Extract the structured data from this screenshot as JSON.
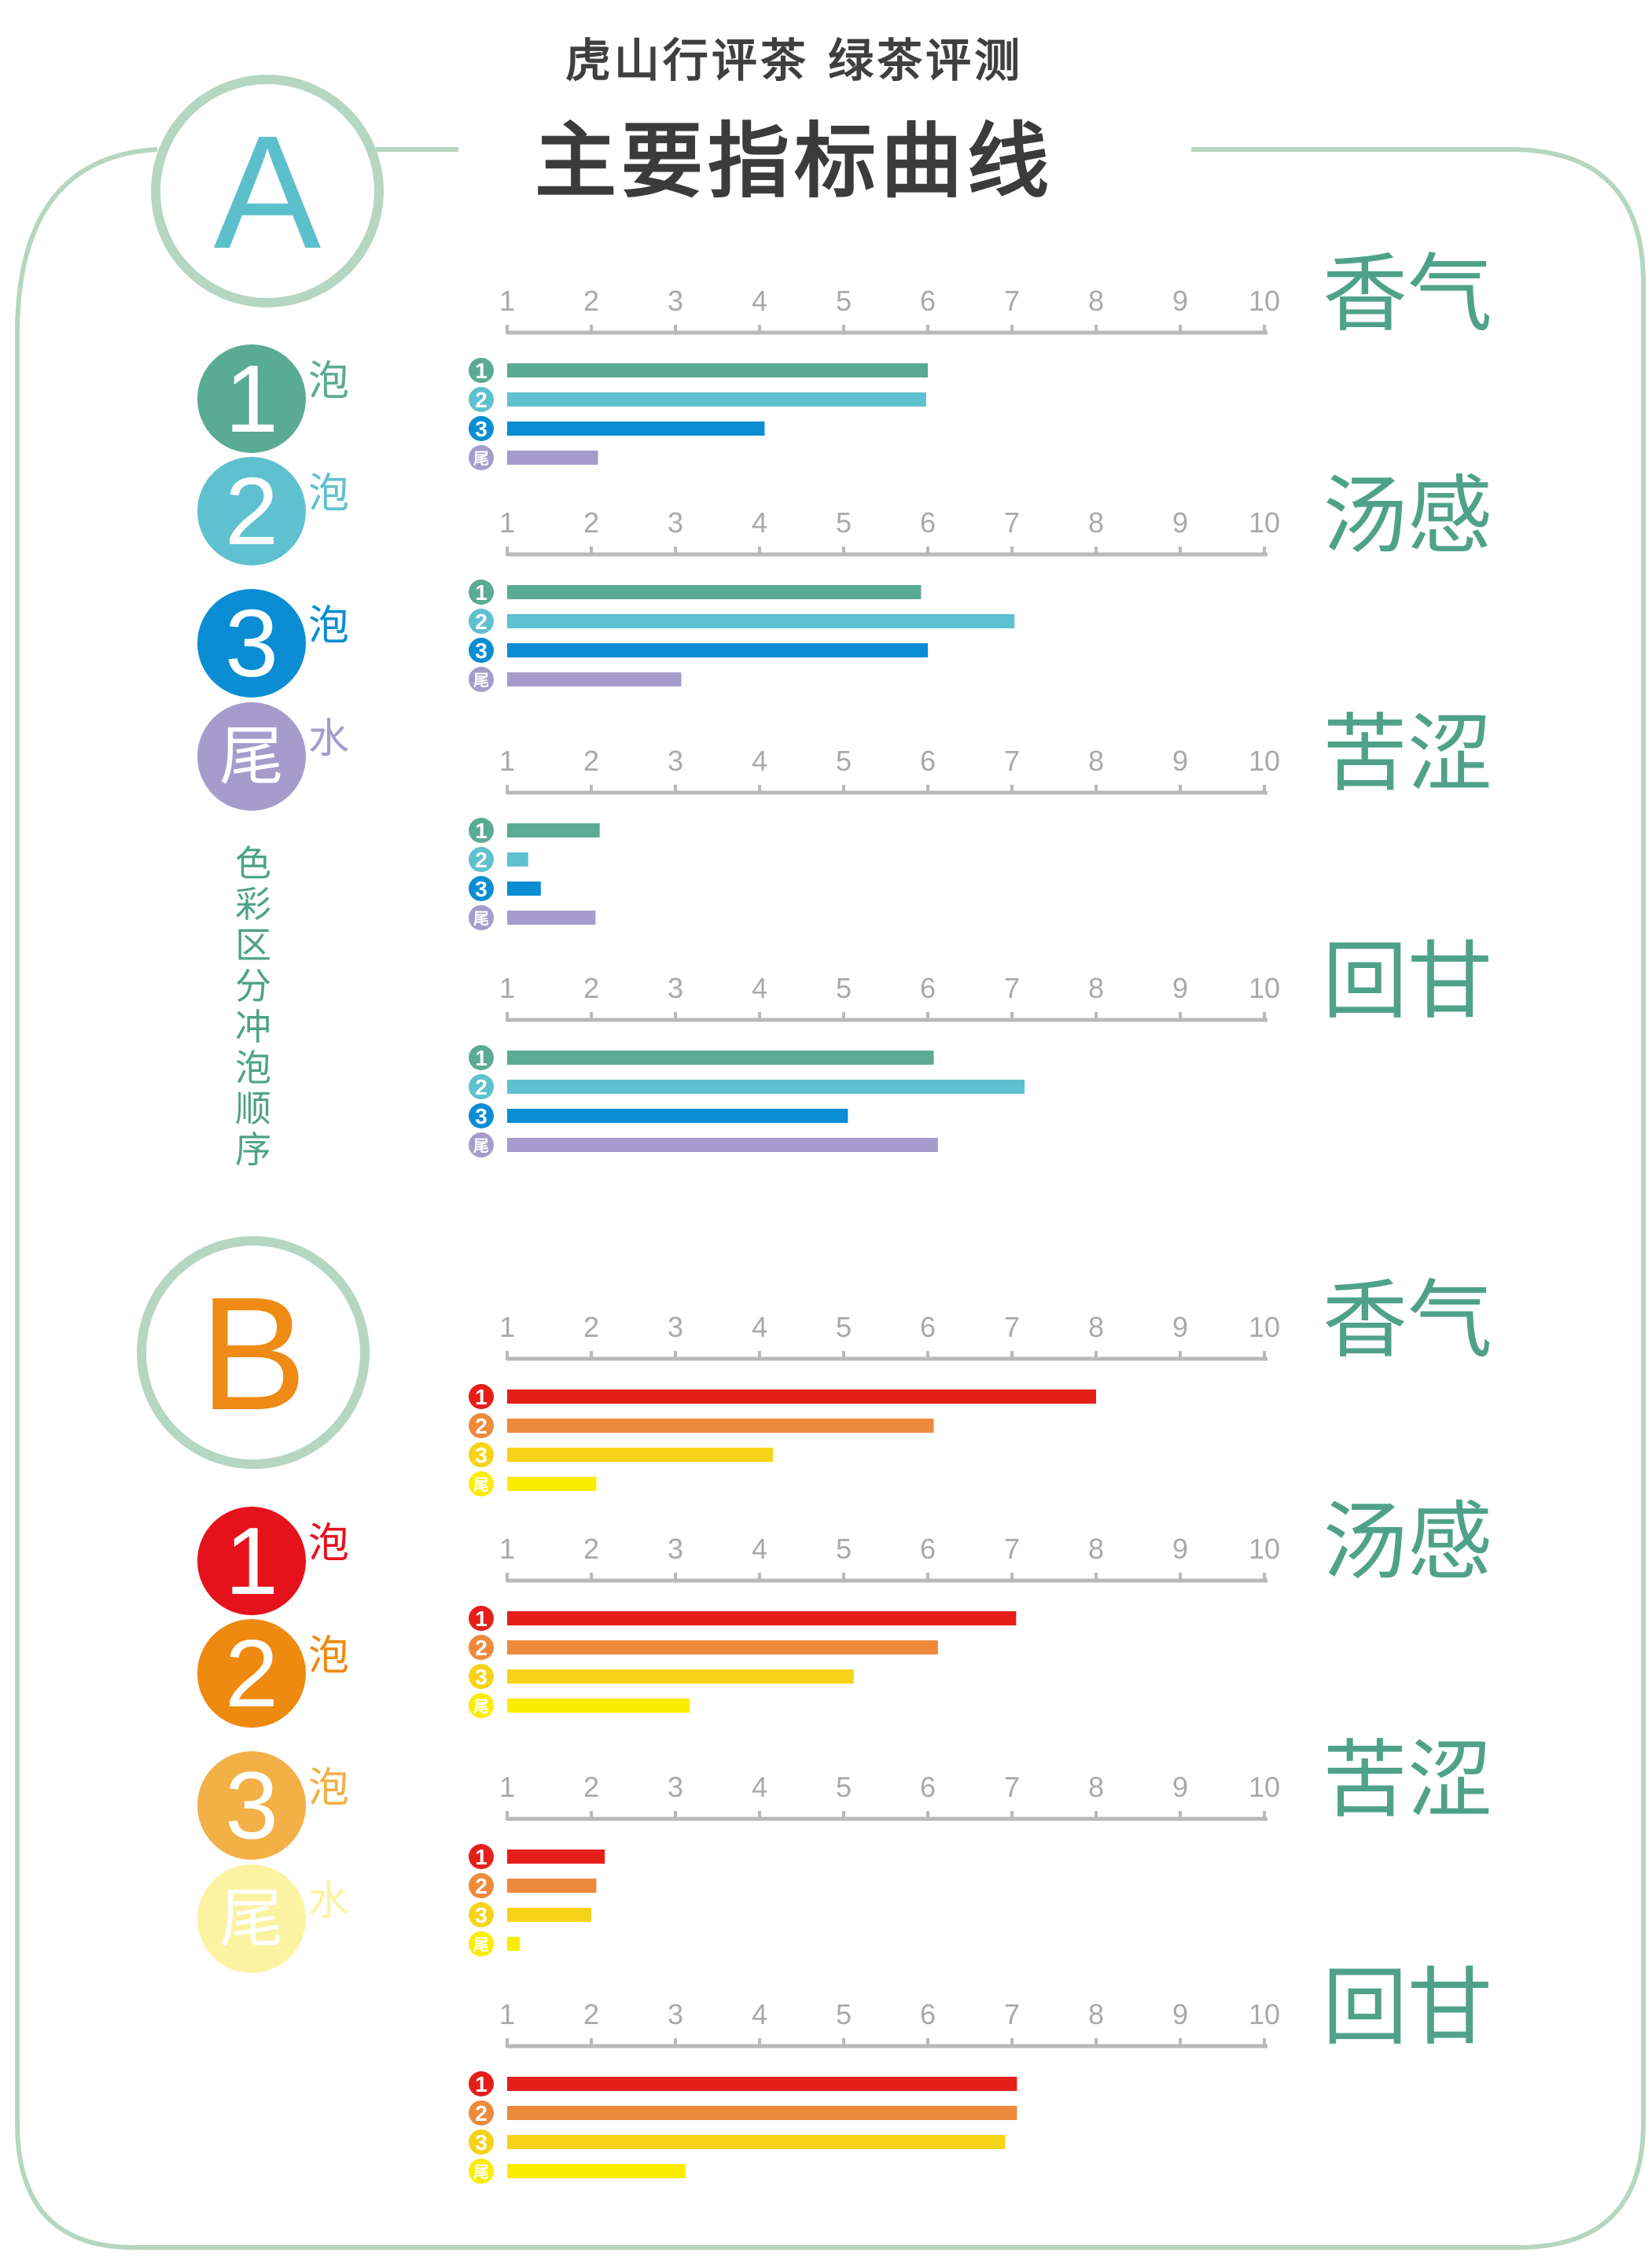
{
  "header": {
    "subtitle": "虎山行评茶  绿茶评测",
    "title": "主要指标曲线"
  },
  "colors": {
    "frame": "#b5d6c0",
    "accent_green": "#4fa289",
    "axis": "#b9b9b9",
    "axis_text": "#a9a9a9"
  },
  "axis": {
    "ticks": [
      "1",
      "2",
      "3",
      "4",
      "5",
      "6",
      "7",
      "8",
      "9",
      "10"
    ],
    "range": [
      1,
      10
    ]
  },
  "legend_note": "色彩区分冲泡顺序",
  "sections": [
    {
      "id": "A",
      "letter": "A",
      "letter_color": "#5cbfcc",
      "brews": [
        {
          "badge": "1",
          "suffix": "泡",
          "color": "#5aab93",
          "text_color": "#ffffff",
          "suffix_color": "#5aab93"
        },
        {
          "badge": "2",
          "suffix": "泡",
          "color": "#5fc1cf",
          "text_color": "#ffffff",
          "suffix_color": "#5fc1cf"
        },
        {
          "badge": "3",
          "suffix": "泡",
          "color": "#0a8dd3",
          "text_color": "#ffffff",
          "suffix_color": "#0a8dd3"
        },
        {
          "badge": "尾",
          "suffix": "水",
          "color": "#a69ccb",
          "text_color": "#ffffff",
          "suffix_color": "#a69ccb"
        }
      ],
      "bar_badges": [
        "1",
        "2",
        "3",
        "尾"
      ],
      "bar_colors": [
        "#5aab93",
        "#5fc1cf",
        "#0a8dd3",
        "#a69ccb"
      ],
      "metrics": [
        {
          "label": "香气",
          "values": [
            6.0,
            5.98,
            4.06,
            2.08
          ]
        },
        {
          "label": "汤感",
          "values": [
            5.92,
            7.03,
            6.0,
            3.07
          ]
        },
        {
          "label": "苦涩",
          "values": [
            2.1,
            1.25,
            1.4,
            2.05
          ]
        },
        {
          "label": "回甘",
          "values": [
            6.07,
            7.15,
            5.05,
            6.12
          ]
        }
      ]
    },
    {
      "id": "B",
      "letter": "B",
      "letter_color": "#ef8a14",
      "brews": [
        {
          "badge": "1",
          "suffix": "泡",
          "color": "#e5121b",
          "text_color": "#ffffff",
          "suffix_color": "#e5121b"
        },
        {
          "badge": "2",
          "suffix": "泡",
          "color": "#ee8a0f",
          "text_color": "#ffffff",
          "suffix_color": "#ee8a0f"
        },
        {
          "badge": "3",
          "suffix": "泡",
          "color": "#f2b047",
          "text_color": "#ffffff",
          "suffix_color": "#f2b047"
        },
        {
          "badge": "尾",
          "suffix": "水",
          "color": "#fbf3a1",
          "text_color": "#ffffff",
          "suffix_color": "#fbf3a1"
        }
      ],
      "bar_badges": [
        "1",
        "2",
        "3",
        "尾"
      ],
      "bar_colors": [
        "#e41f1a",
        "#ee8a3c",
        "#f6d318",
        "#fbec00"
      ],
      "metrics": [
        {
          "label": "香气",
          "values": [
            8.0,
            6.07,
            4.16,
            2.06
          ]
        },
        {
          "label": "汤感",
          "values": [
            7.05,
            6.12,
            5.12,
            3.17
          ]
        },
        {
          "label": "苦涩",
          "values": [
            2.16,
            2.06,
            2.0,
            1.15
          ]
        },
        {
          "label": "回甘",
          "values": [
            7.06,
            7.06,
            6.92,
            3.12
          ]
        }
      ]
    }
  ]
}
